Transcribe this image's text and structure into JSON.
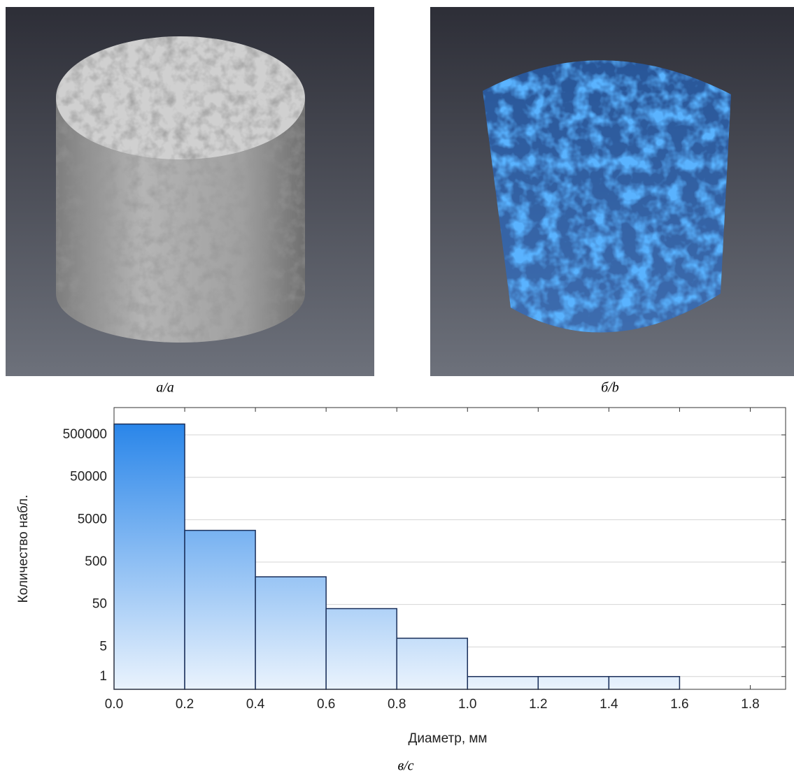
{
  "captions": [
    "а/a",
    "б/b",
    "в/c"
  ],
  "chart_data": {
    "type": "histogram",
    "x_label": "Диаметр, мм",
    "y_label": "Количество набл.",
    "bins": [
      0,
      0.2,
      0.4,
      0.6,
      0.8,
      1.0,
      1.2,
      1.4,
      1.6
    ],
    "values": [
      900000,
      2800,
      225,
      40,
      8,
      1,
      1,
      1
    ],
    "color": "#1e7fe8",
    "log_y": true,
    "grid": true,
    "xlim": [
      0,
      1.9
    ],
    "xticks": [
      {
        "value": 0,
        "label": "0.0"
      },
      0.2,
      0.4,
      0.6,
      0.8,
      {
        "value": 1,
        "label": "1.0"
      },
      1.2,
      1.4,
      1.6,
      1.8
    ],
    "ylim": [
      0.5,
      2200000
    ],
    "yticks": [
      1,
      5,
      50,
      500,
      5000,
      50000,
      500000
    ]
  }
}
